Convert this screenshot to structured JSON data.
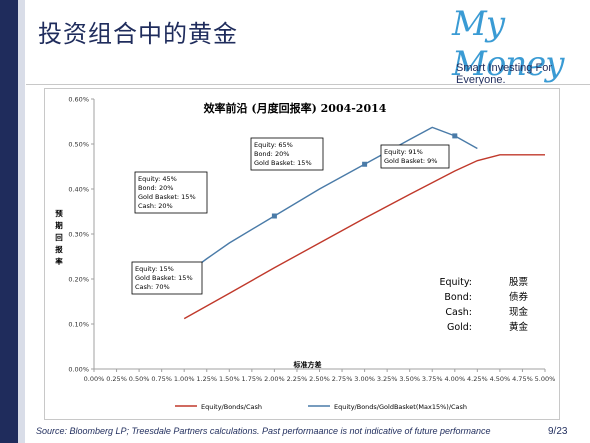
{
  "slide": {
    "title": "投资组合中的黄金",
    "logo": "My Money",
    "tagline": "Smart Investing For Everyone.",
    "source": "Source: Bloomberg LP; Treesdale Partners calculations. Past performaance is not indicative of future performance",
    "page": "9/23"
  },
  "chart_data": {
    "type": "line",
    "title": "效率前沿 (月度回报率) 2004-2014",
    "xlabel": "标准方差",
    "ylabel": "预期回报率",
    "xlim": [
      0.0,
      5.0
    ],
    "ylim": [
      0.0,
      0.6
    ],
    "x_ticks": [
      "0.00%",
      "0.25%",
      "0.50%",
      "0.75%",
      "1.00%",
      "1.25%",
      "1.50%",
      "1.75%",
      "2.00%",
      "2.25%",
      "2.50%",
      "2.75%",
      "3.00%",
      "3.25%",
      "3.50%",
      "3.75%",
      "4.00%",
      "4.25%",
      "4.50%",
      "4.75%",
      "5.00%"
    ],
    "y_ticks": [
      "0.00%",
      "0.10%",
      "0.20%",
      "0.30%",
      "0.40%",
      "0.50%",
      "0.60%"
    ],
    "grid": false,
    "legend_position": "bottom",
    "series": [
      {
        "name": "Equity/Bonds/Cash",
        "color": "#c0392b",
        "x": [
          1.0,
          1.5,
          2.0,
          2.5,
          3.0,
          3.5,
          4.0,
          4.25,
          4.5,
          4.75,
          5.0
        ],
        "y": [
          0.112,
          0.168,
          0.225,
          0.28,
          0.335,
          0.388,
          0.44,
          0.463,
          0.476,
          0.476,
          0.476
        ],
        "markers": []
      },
      {
        "name": "Equity/Bonds/GoldBasket(Max15%)/Cash",
        "color": "#4a7ba8",
        "x": [
          1.0,
          1.25,
          1.5,
          2.0,
          2.5,
          3.0,
          3.5,
          3.75,
          4.0,
          4.25
        ],
        "y": [
          0.208,
          0.245,
          0.28,
          0.34,
          0.4,
          0.455,
          0.51,
          0.537,
          0.518,
          0.49
        ],
        "markers": [
          0,
          3,
          5,
          8
        ]
      }
    ],
    "annotations": [
      {
        "lines": [
          "Equity: 15%",
          "Gold Basket: 15%",
          "Cash: 70%"
        ]
      },
      {
        "lines": [
          "Equity: 45%",
          "Bond: 20%",
          "Gold Basket: 15%",
          "Cash: 20%"
        ]
      },
      {
        "lines": [
          "Equity: 65%",
          "Bond: 20%",
          "Gold Basket: 15%"
        ]
      },
      {
        "lines": [
          "Equity: 91%",
          "Gold Basket: 9%"
        ]
      }
    ],
    "glossary": [
      {
        "en": "Equity:",
        "zh": "股票"
      },
      {
        "en": "Bond:",
        "zh": "债券"
      },
      {
        "en": "Cash:",
        "zh": "现金"
      },
      {
        "en": "Gold:",
        "zh": "黄金"
      }
    ]
  }
}
